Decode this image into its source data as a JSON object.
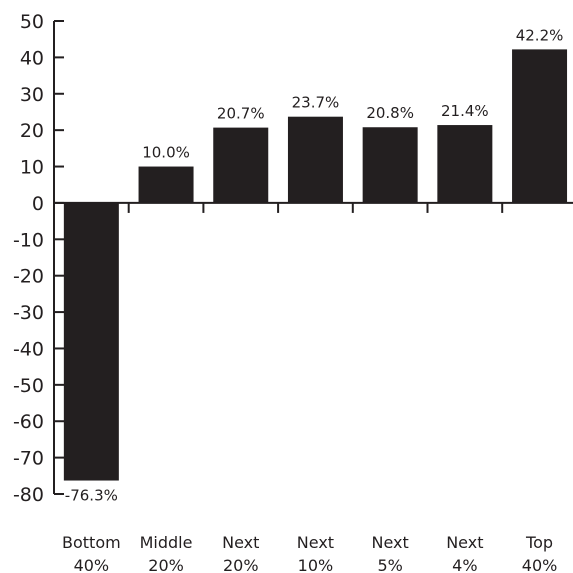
{
  "chart_data": {
    "type": "bar",
    "categories": [
      [
        "Bottom",
        "40%"
      ],
      [
        "Middle",
        "20%"
      ],
      [
        "Next",
        "20%"
      ],
      [
        "Next",
        "10%"
      ],
      [
        "Next",
        "5%"
      ],
      [
        "Next",
        "4%"
      ],
      [
        "Top",
        "40%"
      ]
    ],
    "values": [
      -76.3,
      10.0,
      20.7,
      23.7,
      20.8,
      21.4,
      42.2
    ],
    "data_labels": [
      "-76.3%",
      "10.0%",
      "20.7%",
      "23.7%",
      "20.8%",
      "21.4%",
      "42.2%"
    ],
    "y_ticks": [
      50,
      40,
      30,
      20,
      10,
      0,
      -10,
      -20,
      -30,
      -40,
      -50,
      -60,
      -70,
      -80
    ],
    "ylim": [
      -80,
      50
    ],
    "title": "",
    "xlabel": "",
    "ylabel": "",
    "grid": false,
    "bar_color": "#231f20",
    "axis_color": "#231f20"
  }
}
